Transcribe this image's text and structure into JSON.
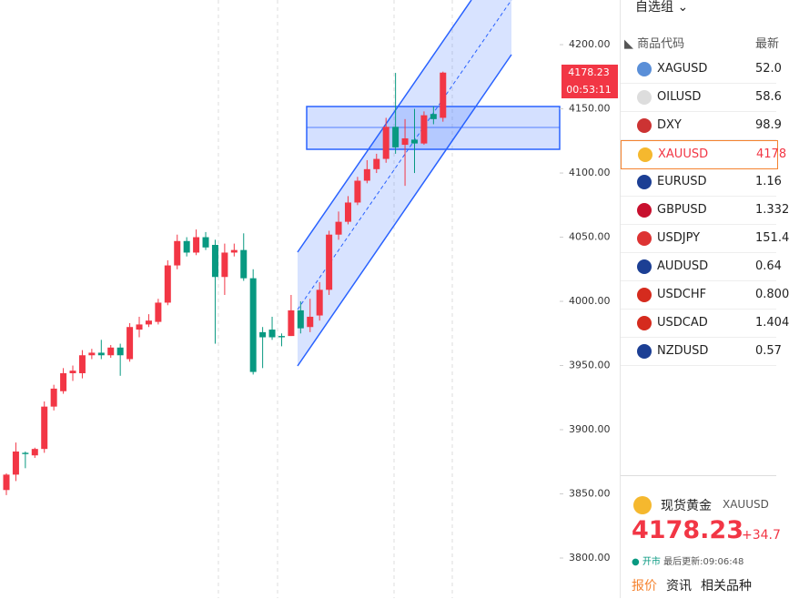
{
  "chart_data": {
    "type": "candlestick",
    "categories": [
      null,
      null,
      null,
      null,
      null,
      null,
      null,
      null,
      null,
      null,
      null,
      null,
      null,
      null,
      null,
      null,
      null,
      null,
      null,
      null,
      null,
      null,
      null,
      null,
      null,
      null,
      null,
      null,
      null,
      null,
      null,
      null,
      null,
      null,
      null,
      null,
      null,
      null,
      null,
      null,
      null,
      null,
      null,
      null,
      null,
      null,
      null
    ],
    "open": [
      3853,
      3865,
      3882,
      3880,
      3885,
      3918,
      3930,
      3944,
      3944,
      3958,
      3960,
      3958,
      3964,
      3955,
      3978,
      3982,
      3984,
      3999,
      4028,
      4047,
      4038,
      4050,
      4044,
      4019,
      4038,
      4040,
      4018,
      3976,
      3978,
      3973,
      3973,
      3993,
      3980,
      3989,
      4009,
      4052,
      4062,
      4077,
      4094,
      4103,
      4111,
      4136,
      4122,
      4126,
      4123,
      4146,
      4143
    ],
    "high": [
      3866,
      3890,
      3883,
      3886,
      3922,
      3935,
      3948,
      3950,
      3962,
      3963,
      3970,
      3966,
      3967,
      3983,
      3988,
      3990,
      4002,
      4032,
      4052,
      4050,
      4056,
      4054,
      4048,
      4045,
      4045,
      4053,
      4025,
      3980,
      3988,
      3975,
      4005,
      4000,
      4002,
      4015,
      4055,
      4070,
      4082,
      4097,
      4110,
      4115,
      4143,
      4178,
      4142,
      4150,
      4148,
      4152,
      4179
    ],
    "low": [
      3849,
      3860,
      3870,
      3878,
      3882,
      3915,
      3928,
      3938,
      3940,
      3955,
      3955,
      3956,
      3942,
      3953,
      3972,
      3980,
      3982,
      3997,
      4025,
      4035,
      4036,
      4040,
      3967,
      4005,
      4035,
      4016,
      3943,
      3948,
      3970,
      3965,
      3973,
      3975,
      3976,
      3985,
      4005,
      4048,
      4060,
      4075,
      4092,
      4100,
      4108,
      4115,
      4090,
      4100,
      4122,
      4138,
      4140
    ],
    "close": [
      3865,
      3883,
      3881,
      3885,
      3918,
      3932,
      3944,
      3946,
      3958,
      3960,
      3958,
      3964,
      3958,
      3980,
      3982,
      3985,
      3999,
      4028,
      4047,
      4038,
      4050,
      4042,
      4019,
      4038,
      4040,
      4018,
      3945,
      3972,
      3972,
      3972,
      3993,
      3979,
      3988,
      4009,
      4052,
      4062,
      4077,
      4094,
      4103,
      4111,
      4136,
      4120,
      4127,
      4123,
      4145,
      4142,
      4178.23
    ],
    "up_color": "#f23645",
    "down_color": "#089981",
    "ylim": [
      3768.8,
      4234.8
    ],
    "yticks": [
      {
        "value": 3800,
        "label": "3800.00"
      },
      {
        "value": 3850,
        "label": "3850.00"
      },
      {
        "value": 3900,
        "label": "3900.00"
      },
      {
        "value": 3950,
        "label": "3950.00"
      },
      {
        "value": 4000,
        "label": "4000.00"
      },
      {
        "value": 4050,
        "label": "4050.00"
      },
      {
        "value": 4100,
        "label": "4100.00"
      },
      {
        "value": 4150,
        "label": "4150.00"
      },
      {
        "value": 4200,
        "label": "4200.00"
      }
    ],
    "last_price": 4178.23,
    "countdown": "00:53:11"
  },
  "watchlist": {
    "title": "自选组",
    "header": [
      "商品代码",
      "最新"
    ],
    "rows": [
      [
        "XAGUSD",
        "52.0"
      ],
      [
        "OILUSD",
        "58.6"
      ],
      [
        "DXY",
        "98.9"
      ],
      [
        "XAUUSD",
        "4178"
      ],
      [
        "EURUSD",
        "1.16"
      ],
      [
        "GBPUSD",
        "1.332"
      ],
      [
        "USDJPY",
        "151.4"
      ],
      [
        "AUDUSD",
        "0.64"
      ],
      [
        "USDCHF",
        "0.800"
      ],
      [
        "USDCAD",
        "1.404"
      ],
      [
        "NZDUSD",
        "0.57"
      ]
    ]
  },
  "detail": {
    "name": "现货黄金",
    "symbol": "XAUUSD",
    "price": "4178.23",
    "change": "+34.7",
    "status": "开市",
    "updated": "最后更新:09:06:48",
    "tabs": [
      "报价",
      "资讯",
      "相关品种"
    ]
  }
}
